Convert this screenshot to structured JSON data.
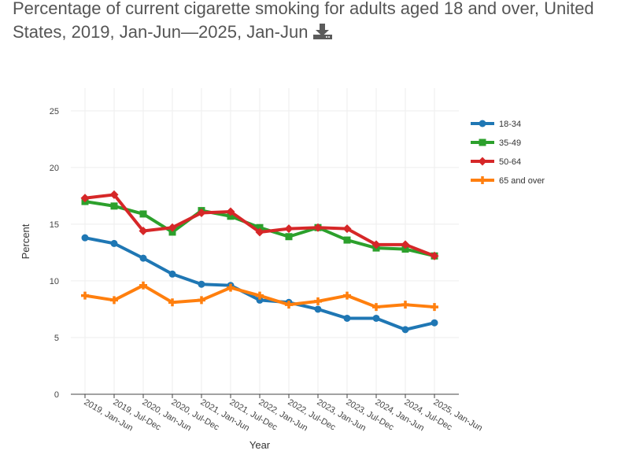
{
  "title": "Percentage of current cigarette smoking for adults aged 18 and over, United States, 2019, Jan-Jun—2025, Jan-Jun",
  "download_icon": "download-icon",
  "chart_data": {
    "type": "line",
    "xlabel": "Year",
    "ylabel": "Percent",
    "ylim": [
      0,
      27
    ],
    "yticks": [
      0,
      5,
      10,
      15,
      20,
      25
    ],
    "grid": true,
    "legend_position": "right",
    "categories": [
      "2019, Jan-Jun",
      "2019, Jul-Dec",
      "2020, Jan-Jun",
      "2020, Jul-Dec",
      "2021, Jan-Jun",
      "2021, Jul-Dec",
      "2022, Jan-Jun",
      "2022, Jul-Dec",
      "2023, Jan-Jun",
      "2023, Jul-Dec",
      "2024, Jan-Jun",
      "2024, Jul-Dec",
      "2025, Jan-Jun"
    ],
    "series": [
      {
        "name": "18-34",
        "color": "#1f77b4",
        "marker": "circle",
        "values": [
          13.8,
          13.3,
          12.0,
          10.6,
          9.7,
          9.6,
          8.3,
          8.1,
          7.5,
          6.7,
          6.7,
          5.7,
          6.3
        ]
      },
      {
        "name": "35-49",
        "color": "#2ca02c",
        "marker": "square",
        "values": [
          17.0,
          16.6,
          15.9,
          14.3,
          16.2,
          15.7,
          14.7,
          13.9,
          14.7,
          13.6,
          12.9,
          12.8,
          12.2
        ]
      },
      {
        "name": "50-64",
        "color": "#d62728",
        "marker": "diamond",
        "values": [
          17.3,
          17.6,
          14.4,
          14.7,
          16.0,
          16.1,
          14.3,
          14.6,
          14.7,
          14.6,
          13.2,
          13.2,
          12.2
        ]
      },
      {
        "name": "65 and over",
        "color": "#ff7f0e",
        "marker": "cross",
        "values": [
          8.7,
          8.3,
          9.6,
          8.1,
          8.3,
          9.4,
          8.7,
          7.9,
          8.2,
          8.7,
          7.7,
          7.9,
          7.7
        ]
      }
    ]
  }
}
